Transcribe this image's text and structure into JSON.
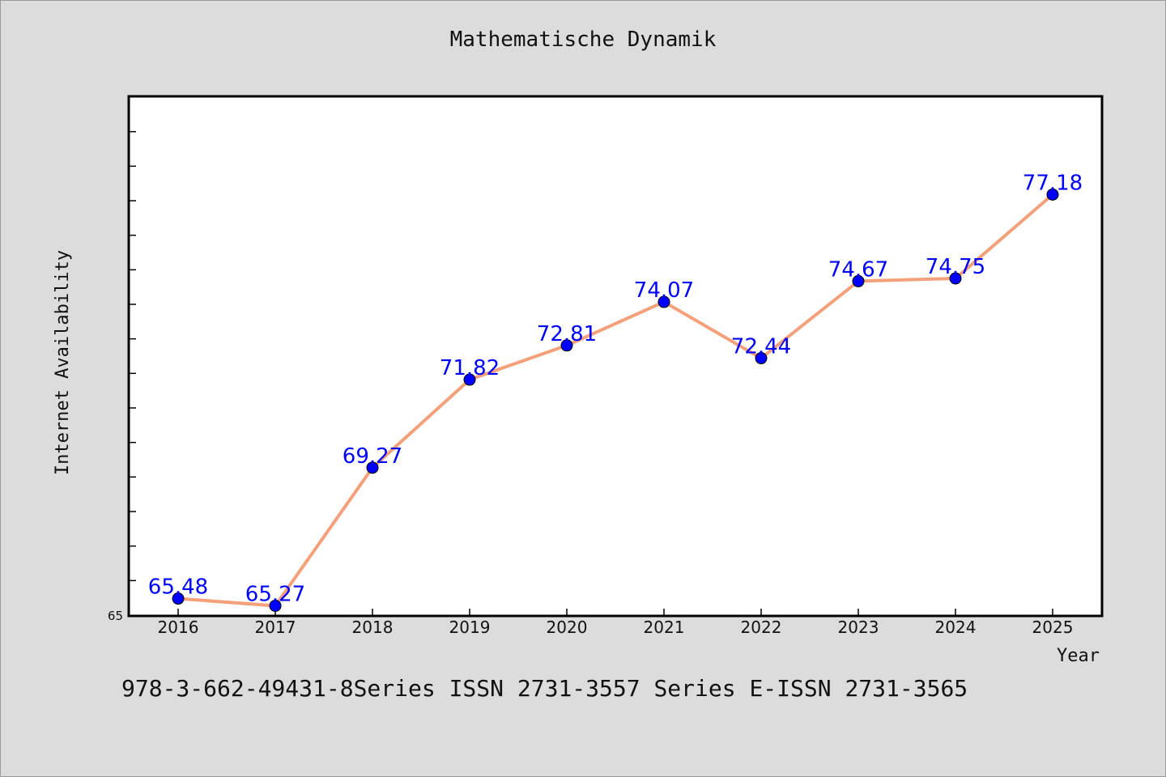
{
  "chart_data": {
    "type": "line",
    "title": "Mathematische Dynamik",
    "xlabel": "Year",
    "ylabel": "Internet Availability",
    "categories": [
      "2016",
      "2017",
      "2018",
      "2019",
      "2020",
      "2021",
      "2022",
      "2023",
      "2024",
      "2025"
    ],
    "series": [
      {
        "values": [
          65.48,
          65.27,
          69.27,
          71.82,
          72.81,
          74.07,
          72.44,
          74.67,
          74.75,
          77.18
        ]
      }
    ],
    "data_labels": [
      "65.48",
      "65.27",
      "69.27",
      "71.82",
      "72.81",
      "74.07",
      "72.44",
      "74.67",
      "74.75",
      "77.18"
    ],
    "y_tick_label": "65",
    "ylim": [
      65,
      80
    ],
    "y_minor_tick_step": 1,
    "grid": false,
    "colors": {
      "line": "#f4a07a",
      "marker": "#0000ff",
      "data_label": "#0000ff",
      "background": "#dcdcdc",
      "plot_area": "#ffffff"
    }
  },
  "footer_text": "978-3-662-49431-8Series ISSN 2731-3557 Series E-ISSN 2731-3565"
}
